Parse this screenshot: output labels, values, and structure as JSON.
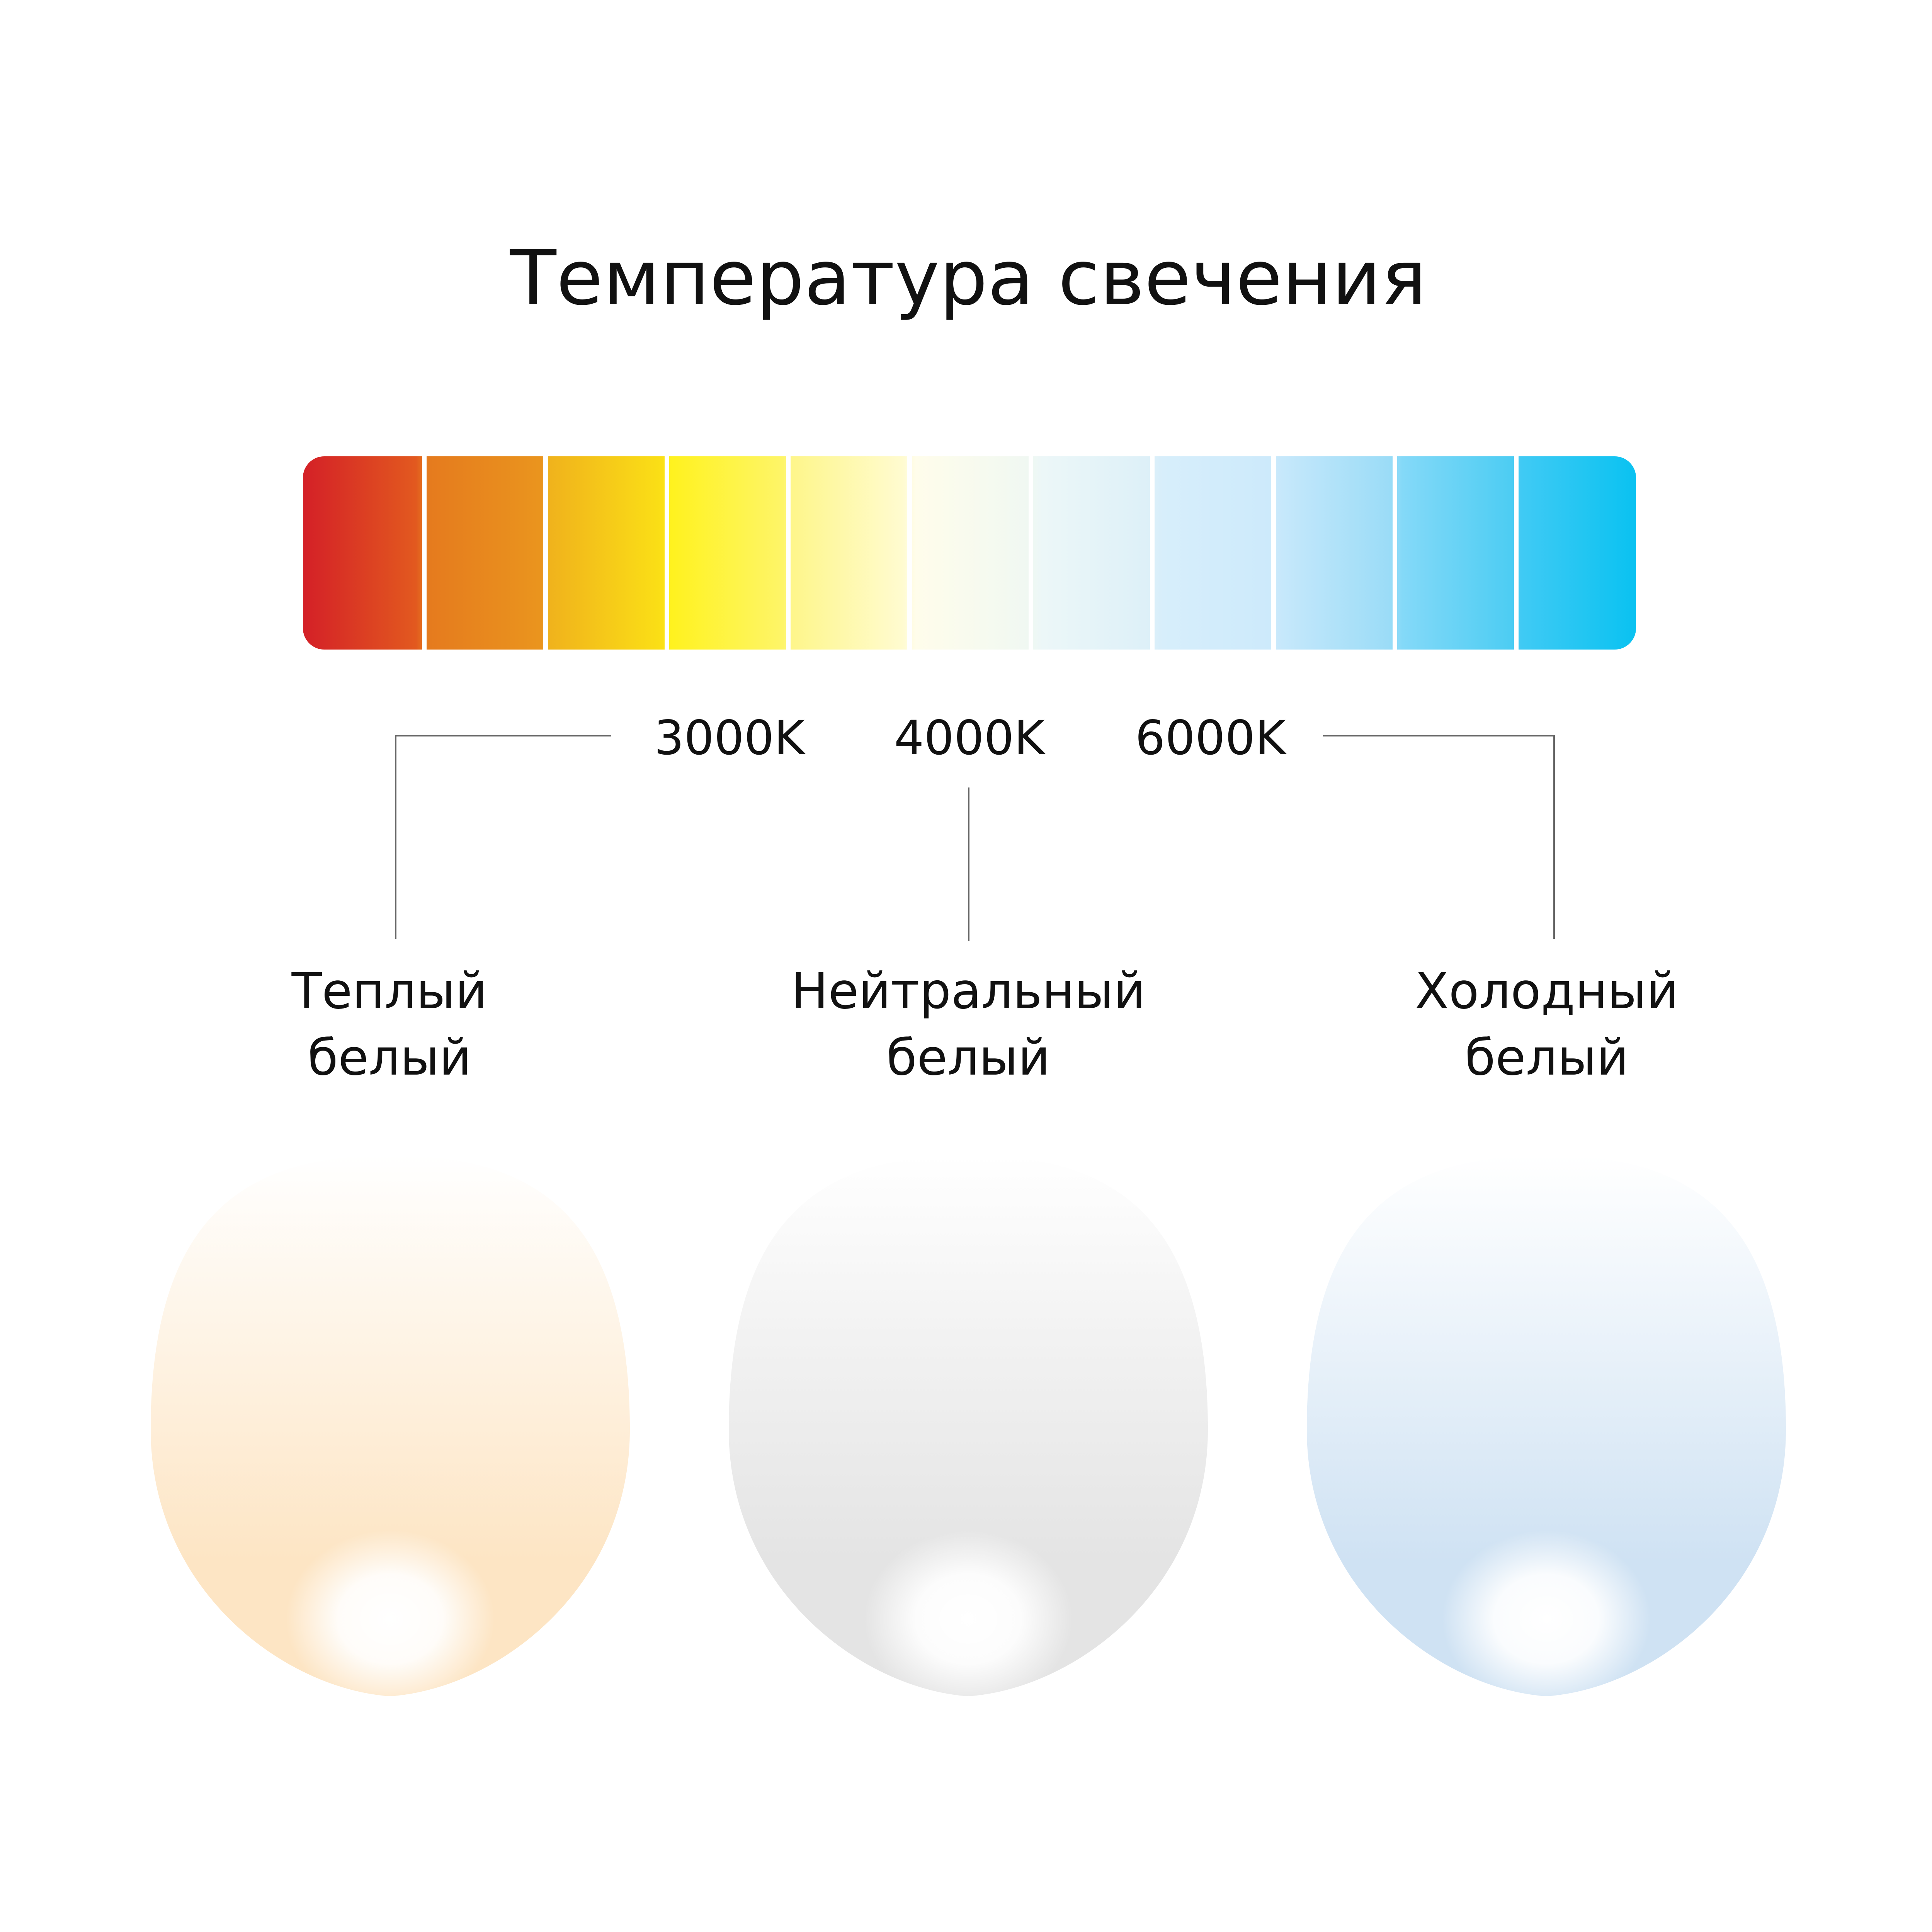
{
  "title": "Температура свечения",
  "scale": {
    "segments": 11,
    "colors": [
      "#d42027",
      "#e98a1e",
      "#fff21f",
      "#fffdeb",
      "#cdeafb",
      "#0ac2f1"
    ],
    "markers": [
      "3000K",
      "4000K",
      "6000K"
    ]
  },
  "categories": [
    {
      "line1": "Теплый",
      "line2": "белый",
      "color": "#fde5c4"
    },
    {
      "line1": "Нейтральный",
      "line2": "белый",
      "color": "#e4e4e4"
    },
    {
      "line1": "Холодный",
      "line2": "белый",
      "color": "#cfe2f3"
    }
  ]
}
